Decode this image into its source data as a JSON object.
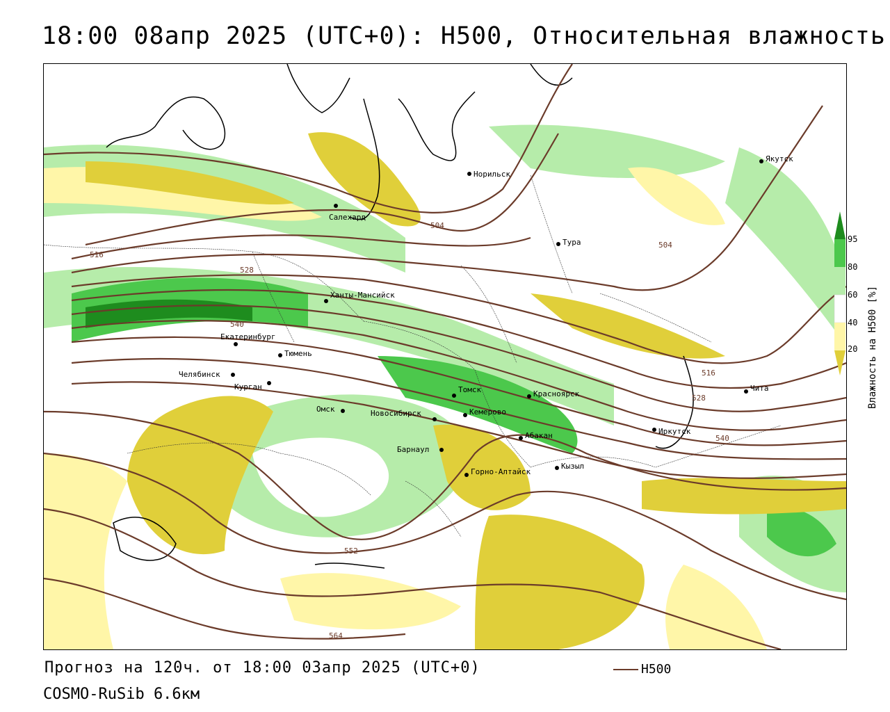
{
  "title": "18:00 08апр 2025 (UTC+0): H500, Относительная влажность",
  "forecast_text": "Прогноз на 120ч. от 18:00 03апр 2025 (UTC+0)",
  "model_text": "COSMO-RuSib 6.6км",
  "line_legend": {
    "label": "H500",
    "color": "#6b3b2a"
  },
  "humidity_legend": {
    "title": "Влажность на H500 [%]",
    "ticks": [
      "95",
      "80",
      "60",
      "40",
      "20"
    ],
    "colors": {
      "very_humid": "#1e8c1e",
      "humid": "#4cc84c",
      "moist": "#b6ecaa",
      "neutral": "#ffffff",
      "dry": "#fff6a8",
      "very_dry": "#e0cf3a"
    }
  },
  "cities": [
    {
      "name": "Норильск"
    },
    {
      "name": "Якутск"
    },
    {
      "name": "Салехард"
    },
    {
      "name": "Тура"
    },
    {
      "name": "Ханты-Мансийск"
    },
    {
      "name": "Екатеринбург"
    },
    {
      "name": "Тюмень"
    },
    {
      "name": "Челябинск"
    },
    {
      "name": "Курган"
    },
    {
      "name": "Омск"
    },
    {
      "name": "Томск"
    },
    {
      "name": "Красноярск"
    },
    {
      "name": "Читa"
    },
    {
      "name": "Новосибирск"
    },
    {
      "name": "Кемерово"
    },
    {
      "name": "Иркутск"
    },
    {
      "name": "Абакан"
    },
    {
      "name": "Барнаул"
    },
    {
      "name": "Кызыл"
    },
    {
      "name": "Горно-Алтайск"
    }
  ],
  "contour_labels": [
    "504",
    "504",
    "516",
    "516",
    "528",
    "528",
    "540",
    "540",
    "552",
    "564"
  ]
}
